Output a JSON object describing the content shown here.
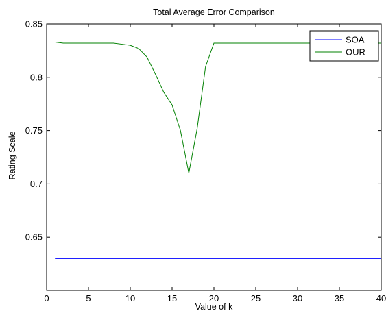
{
  "chart_data": {
    "type": "line",
    "title": "Total Average Error Comparison",
    "xlabel": "Value of k",
    "ylabel": "Rating Scale",
    "xlim": [
      0,
      40
    ],
    "ylim": [
      0.6,
      0.85
    ],
    "xticks": [
      0,
      5,
      10,
      15,
      20,
      25,
      30,
      35,
      40
    ],
    "yticks": [
      0.65,
      0.7,
      0.75,
      0.8,
      0.85
    ],
    "xtick_labels": [
      "0",
      "5",
      "10",
      "15",
      "20",
      "25",
      "30",
      "35",
      "40"
    ],
    "ytick_labels": [
      "0.65",
      "0.7",
      "0.75",
      "0.8",
      "0.85"
    ],
    "grid": false,
    "legend_position": "top-right",
    "series": [
      {
        "name": "SOA",
        "color": "#0000ff",
        "x": [
          1,
          40
        ],
        "y": [
          0.63,
          0.63
        ]
      },
      {
        "name": "OUR",
        "color": "#008000",
        "x": [
          1,
          2,
          3,
          4,
          5,
          6,
          7,
          8,
          9,
          10,
          11,
          12,
          13,
          14,
          15,
          16,
          17,
          18,
          19,
          20,
          21,
          22,
          23,
          24,
          25,
          26,
          27,
          28,
          29,
          30,
          31,
          32,
          33,
          34,
          35,
          36,
          37,
          38,
          39,
          40
        ],
        "y": [
          0.833,
          0.832,
          0.832,
          0.832,
          0.832,
          0.832,
          0.832,
          0.832,
          0.831,
          0.83,
          0.827,
          0.819,
          0.803,
          0.786,
          0.774,
          0.75,
          0.71,
          0.752,
          0.81,
          0.832,
          0.832,
          0.832,
          0.832,
          0.832,
          0.832,
          0.832,
          0.832,
          0.832,
          0.832,
          0.832,
          0.832,
          0.832,
          0.832,
          0.832,
          0.832,
          0.832,
          0.832,
          0.832,
          0.832,
          0.832
        ]
      }
    ]
  }
}
